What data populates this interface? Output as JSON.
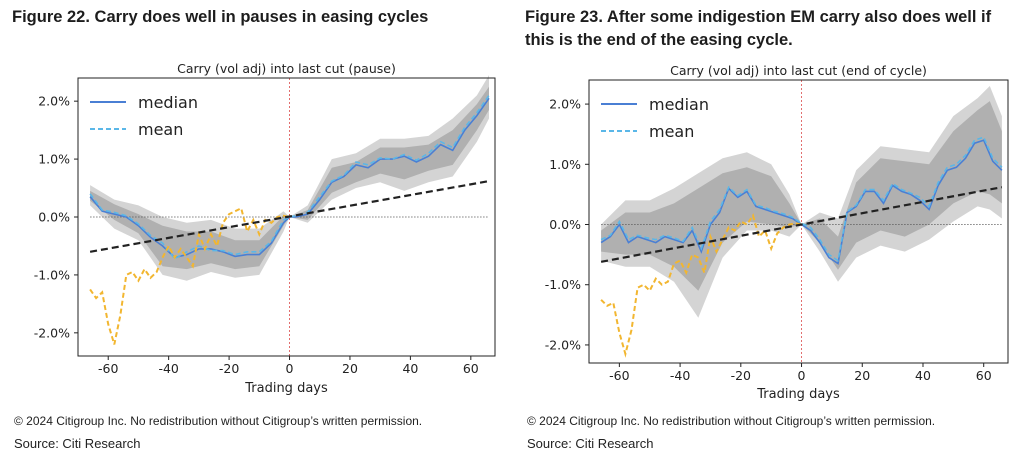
{
  "figures": [
    {
      "figure_title": "Figure 22. Carry does well in pauses in easing cycles",
      "copyright": "© 2024 Citigroup Inc. No redistribution without Citigroup’s written permission.",
      "source": "Source: Citi Research",
      "colors": {
        "median": "#4a7fd4",
        "mean": "#5ab7e8",
        "yellow": "#f2b630",
        "trend": "#222222",
        "band_outer": "#d4d4d4",
        "band_inner": "#a9a9a9",
        "vline": "#e06060"
      },
      "chart_data": {
        "type": "line",
        "title": "Carry (vol adj) into last cut (pause)",
        "xlabel": "Trading days",
        "ylabel": "",
        "xlim": [
          -70,
          68
        ],
        "ylim": [
          -2.4,
          2.4
        ],
        "xticks": [
          -60,
          -40,
          -20,
          0,
          20,
          40,
          60
        ],
        "yticks": [
          2.0,
          1.0,
          0.0,
          -1.0,
          -2.0
        ],
        "ytick_labels": [
          "2.0%",
          "1.0%",
          "0.0%",
          "-1.0%",
          "-2.0%"
        ],
        "legend": [
          "median",
          "mean"
        ],
        "legend_position": "top-left",
        "series": [
          {
            "name": "median",
            "style": "solid",
            "x": [
              -66,
              -62,
              -58,
              -54,
              -50,
              -46,
              -42,
              -38,
              -34,
              -30,
              -26,
              -22,
              -18,
              -14,
              -10,
              -6,
              -2,
              0,
              2,
              6,
              10,
              14,
              18,
              22,
              26,
              30,
              34,
              38,
              42,
              46,
              50,
              54,
              58,
              62,
              66
            ],
            "y": [
              0.35,
              0.1,
              0.05,
              0.0,
              -0.15,
              -0.35,
              -0.5,
              -0.7,
              -0.65,
              -0.55,
              -0.55,
              -0.6,
              -0.68,
              -0.65,
              -0.65,
              -0.45,
              -0.1,
              0.0,
              0.0,
              0.05,
              0.3,
              0.6,
              0.7,
              0.9,
              0.85,
              1.0,
              1.0,
              1.05,
              0.95,
              1.05,
              1.25,
              1.15,
              1.5,
              1.75,
              2.05
            ]
          },
          {
            "name": "mean",
            "style": "dashed",
            "x": [
              -66,
              -62,
              -58,
              -54,
              -50,
              -46,
              -42,
              -38,
              -34,
              -30,
              -26,
              -22,
              -18,
              -14,
              -10,
              -6,
              -2,
              0,
              2,
              6,
              10,
              14,
              18,
              22,
              26,
              30,
              34,
              38,
              42,
              46,
              50,
              54,
              58,
              62,
              66
            ],
            "y": [
              0.4,
              0.12,
              0.08,
              0.02,
              -0.12,
              -0.32,
              -0.45,
              -0.72,
              -0.6,
              -0.5,
              -0.58,
              -0.58,
              -0.65,
              -0.6,
              -0.6,
              -0.42,
              -0.05,
              0.0,
              0.02,
              0.08,
              0.35,
              0.62,
              0.72,
              0.95,
              0.9,
              1.02,
              1.0,
              1.08,
              0.98,
              1.1,
              1.3,
              1.2,
              1.55,
              1.8,
              2.1
            ]
          },
          {
            "name": "",
            "style": "dashed-yellow",
            "x": [
              -66,
              -64,
              -62,
              -60,
              -58,
              -56,
              -54,
              -52,
              -50,
              -48,
              -46,
              -44,
              -42,
              -40,
              -38,
              -36,
              -34,
              -32,
              -30,
              -28,
              -26,
              -24,
              -22,
              -20,
              -18,
              -16,
              -14,
              -12,
              -10,
              -8,
              -6,
              -4,
              -2,
              0
            ],
            "y": [
              -1.25,
              -1.4,
              -1.3,
              -1.85,
              -2.2,
              -1.7,
              -1.0,
              -0.95,
              -1.1,
              -0.9,
              -1.05,
              -0.95,
              -0.7,
              -0.5,
              -0.7,
              -0.55,
              -0.7,
              -0.85,
              -0.3,
              -0.55,
              -0.3,
              -0.5,
              -0.1,
              0.05,
              0.1,
              0.15,
              -0.25,
              -0.05,
              -0.3,
              -0.05,
              -0.1,
              0.0,
              0.02,
              0.0
            ]
          },
          {
            "name": "",
            "style": "dashed-trend",
            "x": [
              -66,
              66
            ],
            "y": [
              -0.6,
              0.62
            ]
          }
        ],
        "bands": {
          "x": [
            -66,
            -58,
            -50,
            -42,
            -34,
            -26,
            -18,
            -10,
            -2,
            0,
            6,
            14,
            22,
            30,
            38,
            46,
            54,
            62,
            66
          ],
          "outer_lo": [
            0.2,
            -0.2,
            -0.4,
            -1.0,
            -1.1,
            -0.95,
            -1.05,
            -1.0,
            -0.25,
            0.0,
            -0.1,
            0.3,
            0.5,
            0.6,
            0.45,
            0.6,
            0.7,
            1.3,
            1.7
          ],
          "outer_hi": [
            0.55,
            0.3,
            0.2,
            0.0,
            -0.1,
            -0.05,
            -0.2,
            -0.2,
            0.1,
            0.0,
            0.2,
            1.0,
            1.1,
            1.35,
            1.35,
            1.4,
            1.7,
            2.1,
            2.45
          ],
          "inner_lo": [
            0.28,
            -0.05,
            -0.28,
            -0.85,
            -0.9,
            -0.8,
            -0.9,
            -0.85,
            -0.15,
            0.0,
            -0.05,
            0.42,
            0.6,
            0.75,
            0.65,
            0.8,
            0.9,
            1.5,
            1.85
          ],
          "inner_hi": [
            0.45,
            0.22,
            0.05,
            -0.15,
            -0.25,
            -0.25,
            -0.4,
            -0.4,
            0.02,
            0.0,
            0.12,
            0.85,
            0.95,
            1.2,
            1.2,
            1.25,
            1.5,
            1.95,
            2.25
          ]
        }
      }
    },
    {
      "figure_title": "Figure 23. After some indigestion EM carry also does well if this is the end of the easing cycle.",
      "copyright": "© 2024 Citigroup Inc. No redistribution without Citigroup’s written permission.",
      "source": "Source: Citi Research",
      "colors": {
        "median": "#4a7fd4",
        "mean": "#5ab7e8",
        "yellow": "#f2b630",
        "trend": "#222222",
        "band_outer": "#d4d4d4",
        "band_inner": "#a9a9a9",
        "vline": "#e06060"
      },
      "chart_data": {
        "type": "line",
        "title": "Carry (vol adj) into last cut (end of cycle)",
        "xlabel": "Trading days",
        "ylabel": "",
        "xlim": [
          -70,
          68
        ],
        "ylim": [
          -2.3,
          2.4
        ],
        "xticks": [
          -60,
          -40,
          -20,
          0,
          20,
          40,
          60
        ],
        "yticks": [
          2.0,
          1.0,
          0.0,
          -1.0,
          -2.0
        ],
        "ytick_labels": [
          "2.0%",
          "1.0%",
          "0.0%",
          "-1.0%",
          "-2.0%"
        ],
        "legend": [
          "median",
          "mean"
        ],
        "legend_position": "top-left",
        "series": [
          {
            "name": "median",
            "style": "solid",
            "x": [
              -66,
              -63,
              -60,
              -57,
              -54,
              -51,
              -48,
              -45,
              -42,
              -39,
              -36,
              -33,
              -30,
              -27,
              -24,
              -21,
              -18,
              -15,
              -12,
              -9,
              -6,
              -3,
              0,
              3,
              6,
              9,
              12,
              15,
              18,
              21,
              24,
              27,
              30,
              33,
              36,
              39,
              42,
              45,
              48,
              51,
              54,
              57,
              60,
              63,
              66
            ],
            "y": [
              -0.3,
              -0.2,
              0.0,
              -0.3,
              -0.2,
              -0.25,
              -0.3,
              -0.2,
              -0.25,
              -0.3,
              -0.1,
              -0.45,
              0.0,
              0.2,
              0.6,
              0.45,
              0.55,
              0.3,
              0.25,
              0.2,
              0.15,
              0.1,
              0.0,
              -0.1,
              -0.3,
              -0.55,
              -0.65,
              0.2,
              0.3,
              0.55,
              0.55,
              0.35,
              0.65,
              0.55,
              0.5,
              0.4,
              0.25,
              0.65,
              0.9,
              0.95,
              1.1,
              1.35,
              1.4,
              1.05,
              0.9
            ]
          },
          {
            "name": "mean",
            "style": "dashed",
            "x": [
              -66,
              -63,
              -60,
              -57,
              -54,
              -51,
              -48,
              -45,
              -42,
              -39,
              -36,
              -33,
              -30,
              -27,
              -24,
              -21,
              -18,
              -15,
              -12,
              -9,
              -6,
              -3,
              0,
              3,
              6,
              9,
              12,
              15,
              18,
              21,
              24,
              27,
              30,
              33,
              36,
              39,
              42,
              45,
              48,
              51,
              54,
              57,
              60,
              63,
              66
            ],
            "y": [
              -0.25,
              -0.18,
              0.05,
              -0.25,
              -0.18,
              -0.22,
              -0.25,
              -0.18,
              -0.22,
              -0.28,
              -0.05,
              -0.4,
              0.05,
              0.25,
              0.62,
              0.48,
              0.58,
              0.32,
              0.28,
              0.22,
              0.18,
              0.12,
              0.02,
              -0.05,
              -0.25,
              -0.5,
              -0.6,
              0.22,
              0.32,
              0.58,
              0.58,
              0.4,
              0.68,
              0.58,
              0.52,
              0.45,
              0.3,
              0.7,
              0.95,
              1.0,
              1.15,
              1.4,
              1.45,
              1.1,
              0.95
            ]
          },
          {
            "name": "",
            "style": "dashed-yellow",
            "x": [
              -66,
              -64,
              -62,
              -60,
              -58,
              -56,
              -54,
              -52,
              -50,
              -48,
              -46,
              -44,
              -42,
              -40,
              -38,
              -36,
              -34,
              -32,
              -30,
              -28,
              -26,
              -24,
              -22,
              -20,
              -18,
              -16,
              -14,
              -12,
              -10,
              -8,
              -6,
              -4,
              -2,
              0
            ],
            "y": [
              -1.25,
              -1.35,
              -1.3,
              -1.8,
              -2.15,
              -1.75,
              -1.05,
              -1.0,
              -1.1,
              -0.9,
              -1.0,
              -0.95,
              -0.65,
              -0.6,
              -0.8,
              -0.5,
              -0.55,
              -0.8,
              -0.2,
              -0.45,
              -0.25,
              -0.05,
              -0.1,
              0.05,
              0.0,
              0.15,
              -0.2,
              -0.1,
              -0.4,
              -0.15,
              -0.05,
              0.0,
              0.02,
              0.0
            ]
          },
          {
            "name": "",
            "style": "dashed-trend",
            "x": [
              -66,
              66
            ],
            "y": [
              -0.62,
              0.62
            ]
          }
        ],
        "bands": {
          "x": [
            -66,
            -58,
            -50,
            -42,
            -34,
            -26,
            -18,
            -10,
            -4,
            0,
            6,
            12,
            18,
            26,
            34,
            42,
            50,
            58,
            62,
            66
          ],
          "outer_lo": [
            -0.6,
            -0.7,
            -0.7,
            -0.95,
            -1.55,
            -0.55,
            -0.1,
            -0.1,
            -0.2,
            0.0,
            -0.45,
            -0.95,
            -0.55,
            -0.35,
            -0.45,
            -0.25,
            0.05,
            0.3,
            0.25,
            0.1
          ],
          "outer_hi": [
            0.0,
            0.4,
            0.4,
            0.6,
            0.85,
            1.1,
            1.2,
            1.0,
            0.5,
            0.0,
            0.2,
            0.1,
            0.9,
            1.3,
            1.25,
            1.2,
            1.8,
            2.1,
            2.3,
            1.8
          ],
          "inner_lo": [
            -0.45,
            -0.5,
            -0.5,
            -0.7,
            -1.1,
            -0.3,
            0.05,
            0.0,
            -0.05,
            0.0,
            -0.3,
            -0.75,
            -0.3,
            -0.1,
            -0.2,
            0.0,
            0.35,
            0.55,
            0.5,
            0.35
          ],
          "inner_hi": [
            -0.1,
            0.2,
            0.2,
            0.35,
            0.6,
            0.85,
            0.95,
            0.8,
            0.35,
            0.0,
            0.1,
            -0.2,
            0.7,
            1.1,
            1.05,
            1.0,
            1.55,
            1.9,
            2.05,
            1.55
          ]
        }
      }
    }
  ]
}
